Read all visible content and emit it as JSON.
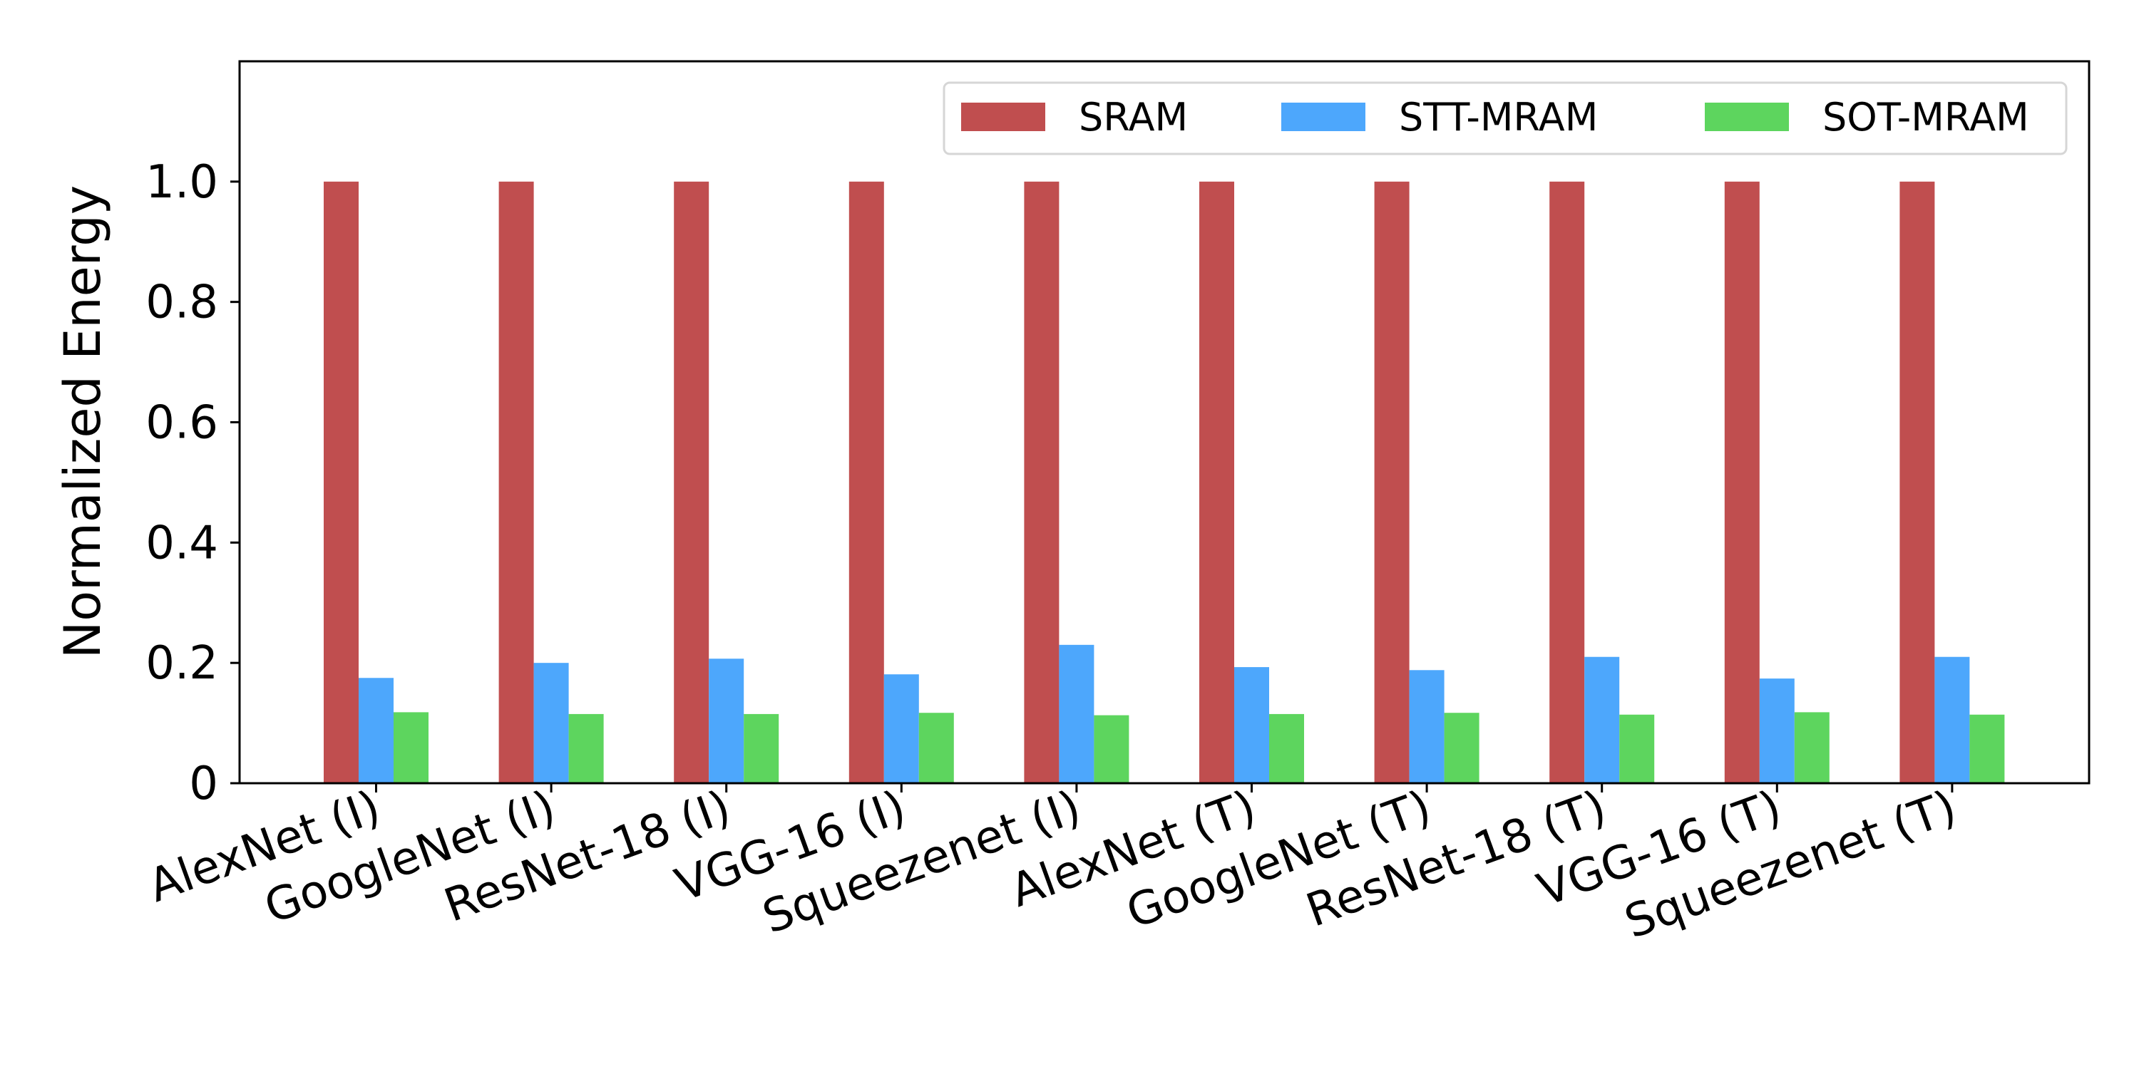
{
  "chart_data": {
    "type": "bar",
    "title": "",
    "xlabel": "",
    "ylabel": "Normalized Energy",
    "ylim": [
      0,
      1.2
    ],
    "yticks": [
      0,
      0.2,
      0.4,
      0.6,
      0.8,
      1.0
    ],
    "ytick_labels": [
      "0",
      "0.2",
      "0.4",
      "0.6",
      "0.8",
      "1.0"
    ],
    "grid": false,
    "legend_position": "top-right",
    "categories": [
      "AlexNet (I)",
      "GoogleNet (I)",
      "ResNet-18 (I)",
      "VGG-16 (I)",
      "Squeezenet (I)",
      "AlexNet (T)",
      "GoogleNet (T)",
      "ResNet-18 (T)",
      "VGG-16 (T)",
      "Squeezenet (T)"
    ],
    "series": [
      {
        "name": "SRAM",
        "color": "#c04e4f",
        "values": [
          1.0,
          1.0,
          1.0,
          1.0,
          1.0,
          1.0,
          1.0,
          1.0,
          1.0,
          1.0
        ]
      },
      {
        "name": "STT-MRAM",
        "color": "#4da7fc",
        "values": [
          0.175,
          0.2,
          0.207,
          0.181,
          0.23,
          0.193,
          0.188,
          0.21,
          0.174,
          0.21
        ]
      },
      {
        "name": "SOT-MRAM",
        "color": "#5dd55e",
        "values": [
          0.118,
          0.115,
          0.115,
          0.117,
          0.113,
          0.115,
          0.117,
          0.114,
          0.118,
          0.114
        ]
      }
    ]
  }
}
